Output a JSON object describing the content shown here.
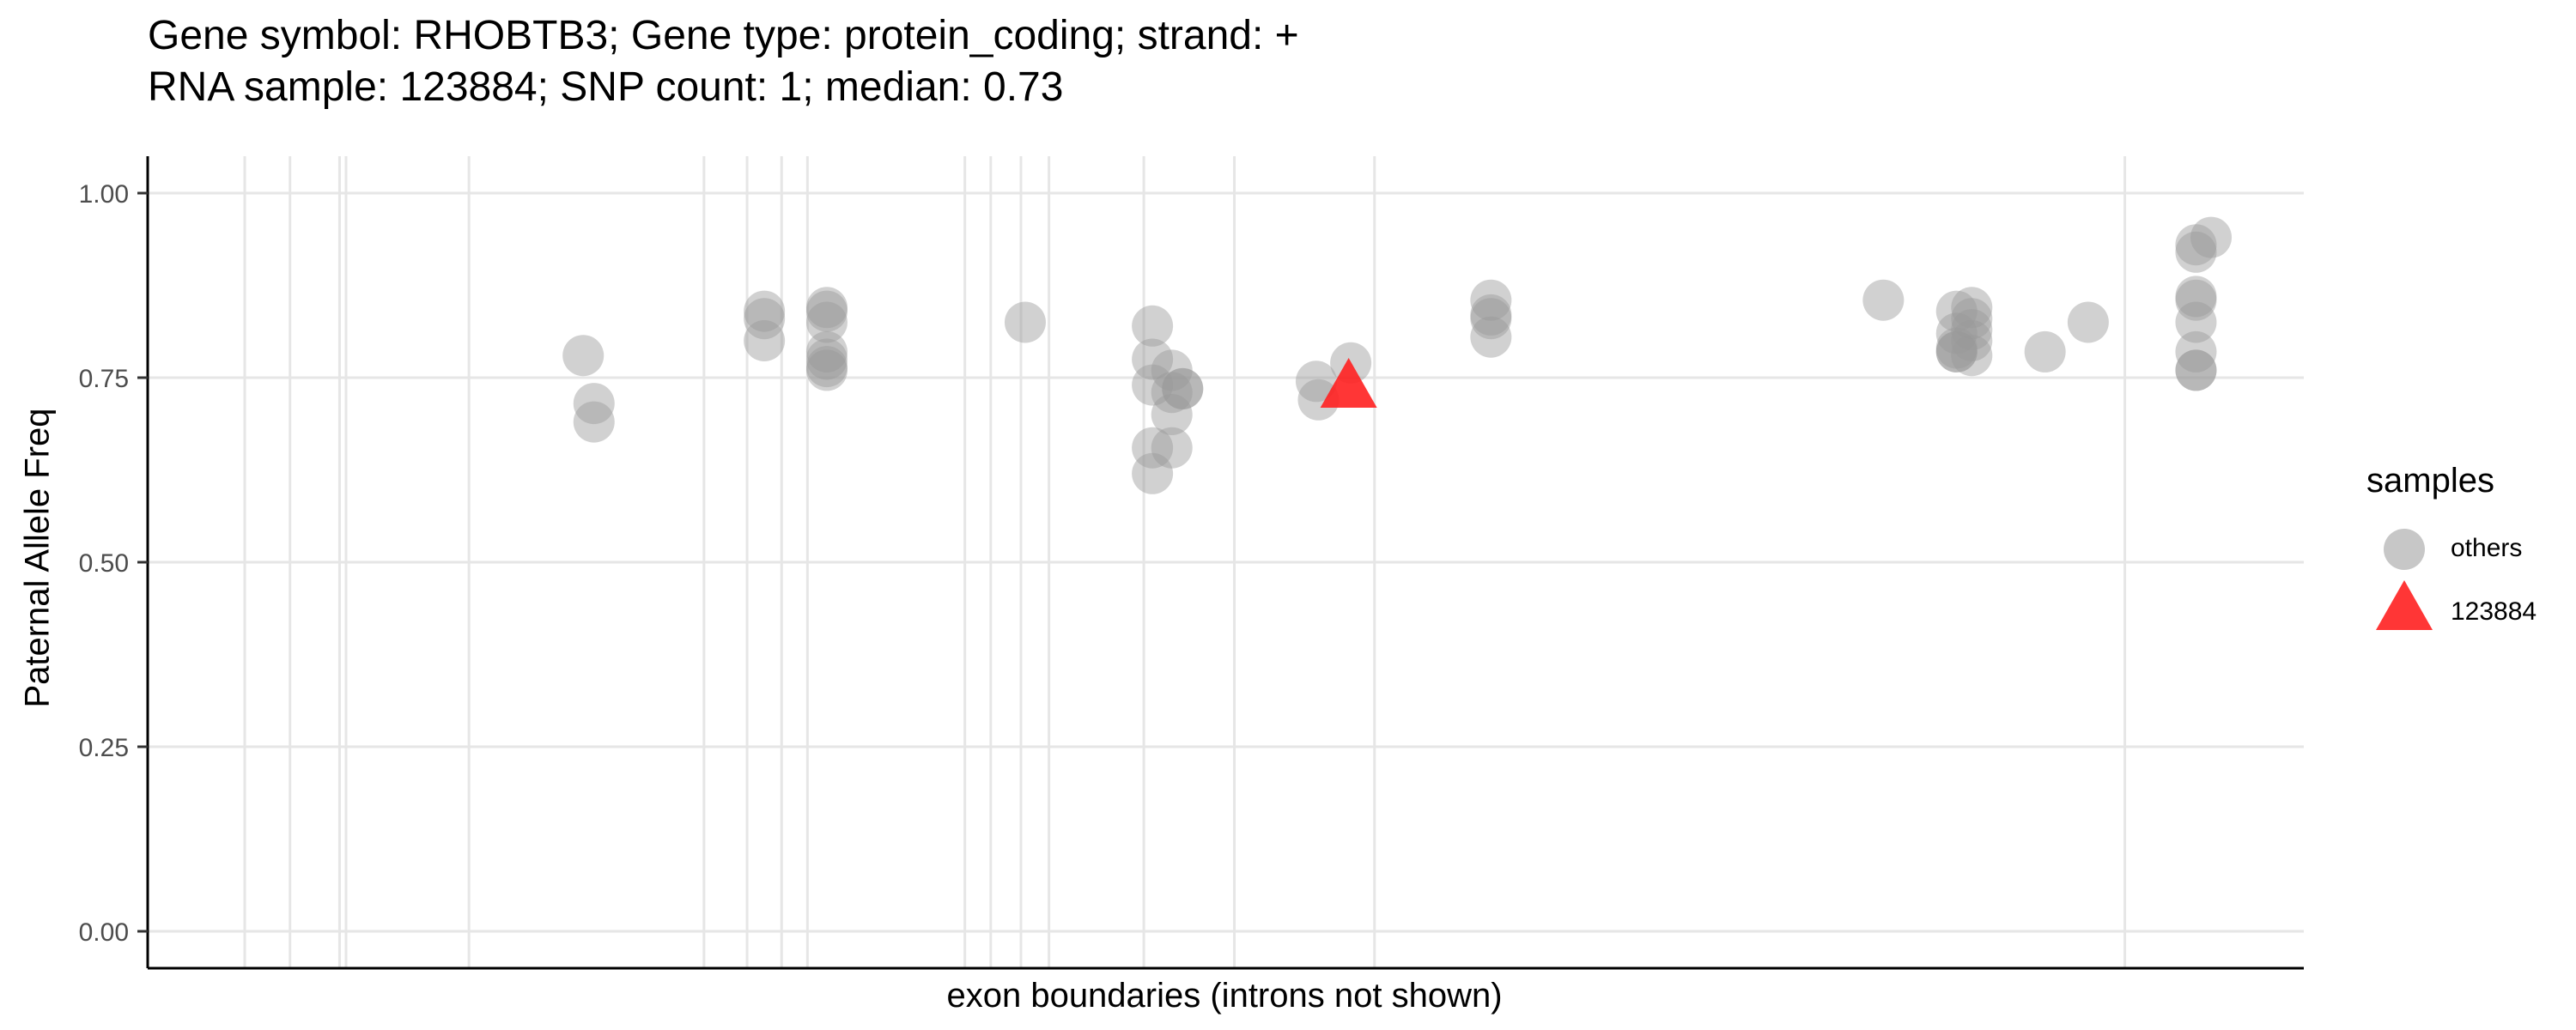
{
  "chart_data": {
    "type": "scatter",
    "title": "Gene symbol: RHOBTB3; Gene type: protein_coding; strand: +",
    "subtitle": "RNA sample: 123884; SNP count: 1; median: 0.73",
    "xlabel": "exon boundaries (introns not shown)",
    "ylabel": "Paternal Allele Freq",
    "ylim": [
      -0.05,
      1.05
    ],
    "xlim": [
      0,
      1
    ],
    "y_ticks": [
      "0.00",
      "0.25",
      "0.50",
      "0.75",
      "1.00"
    ],
    "y_tick_values": [
      0,
      0.25,
      0.5,
      0.75,
      1.0
    ],
    "x_tick_labels": false,
    "grid": true,
    "exon_boundaries": [
      0.045,
      0.066,
      0.089,
      0.092,
      0.149,
      0.258,
      0.278,
      0.294,
      0.306,
      0.379,
      0.391,
      0.405,
      0.418,
      0.462,
      0.504,
      0.569,
      0.917
    ],
    "legend": {
      "title": "samples",
      "placement": "right",
      "entries": [
        {
          "label": "others",
          "shape": "circle",
          "color": "#999999"
        },
        {
          "label": "123884",
          "shape": "triangle",
          "color": "#ff2020"
        }
      ]
    },
    "series": [
      {
        "name": "others",
        "color": "#999999",
        "opacity": 0.45,
        "x": [
          0.202,
          0.207,
          0.207,
          0.286,
          0.286,
          0.286,
          0.315,
          0.315,
          0.315,
          0.315,
          0.315,
          0.315,
          0.315,
          0.407,
          0.466,
          0.466,
          0.466,
          0.466,
          0.466,
          0.475,
          0.475,
          0.475,
          0.475,
          0.48,
          0.48,
          0.542,
          0.543,
          0.558,
          0.623,
          0.623,
          0.623,
          0.623,
          0.805,
          0.839,
          0.839,
          0.839,
          0.839,
          0.839,
          0.846,
          0.846,
          0.846,
          0.846,
          0.846,
          0.88,
          0.9,
          0.95,
          0.95,
          0.95,
          0.95,
          0.95,
          0.95,
          0.95,
          0.95,
          0.957
        ],
        "y": [
          0.78,
          0.715,
          0.69,
          0.84,
          0.83,
          0.8,
          0.845,
          0.84,
          0.825,
          0.785,
          0.775,
          0.765,
          0.76,
          0.825,
          0.82,
          0.775,
          0.74,
          0.655,
          0.62,
          0.76,
          0.73,
          0.7,
          0.655,
          0.735,
          0.735,
          0.745,
          0.72,
          0.77,
          0.855,
          0.835,
          0.83,
          0.805,
          0.855,
          0.84,
          0.81,
          0.79,
          0.785,
          0.785,
          0.845,
          0.83,
          0.815,
          0.8,
          0.78,
          0.785,
          0.825,
          0.93,
          0.92,
          0.86,
          0.855,
          0.825,
          0.785,
          0.76,
          0.76,
          0.94
        ]
      },
      {
        "name": "123884",
        "color": "#ff2020",
        "opacity": 0.9,
        "x": [
          0.557
        ],
        "y": [
          0.735
        ]
      }
    ]
  }
}
